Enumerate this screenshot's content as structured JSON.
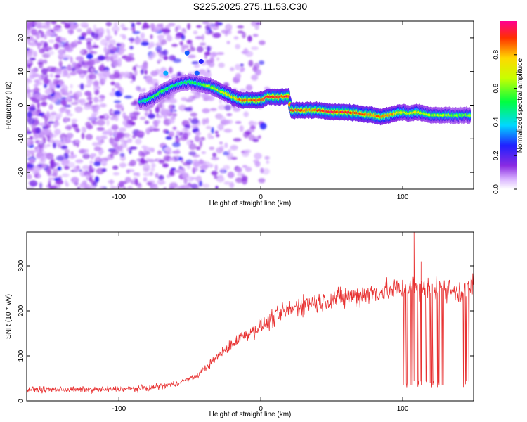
{
  "title": "S225.2025.275.11.53.C30",
  "chart_data": [
    {
      "type": "heatmap",
      "xlabel": "Height of straight line (km)",
      "ylabel": "Frequency (Hz)",
      "xlim": [
        -165,
        150
      ],
      "ylim": [
        -25,
        25
      ],
      "xticks": [
        -100,
        0,
        100
      ],
      "yticks": [
        -20,
        -10,
        0,
        10,
        20
      ],
      "colorbar": {
        "label": "Normalized spectral amplitude",
        "range": [
          0,
          1
        ],
        "ticks": [
          "0.0",
          "0.2",
          "0.4",
          "0.6",
          "0.8"
        ]
      },
      "ridge": [
        {
          "x": -85,
          "y": 1,
          "w": 0.45
        },
        {
          "x": -80,
          "y": 1.5,
          "w": 0.5
        },
        {
          "x": -75,
          "y": 2.5,
          "w": 0.55
        },
        {
          "x": -70,
          "y": 4,
          "w": 0.6
        },
        {
          "x": -65,
          "y": 5,
          "w": 0.55
        },
        {
          "x": -60,
          "y": 6,
          "w": 0.5
        },
        {
          "x": -55,
          "y": 6.5,
          "w": 0.5
        },
        {
          "x": -50,
          "y": 7,
          "w": 0.55
        },
        {
          "x": -45,
          "y": 6.5,
          "w": 0.55
        },
        {
          "x": -40,
          "y": 6,
          "w": 0.6
        },
        {
          "x": -35,
          "y": 5.5,
          "w": 0.65
        },
        {
          "x": -30,
          "y": 4.5,
          "w": 0.7
        },
        {
          "x": -25,
          "y": 3.5,
          "w": 0.75
        },
        {
          "x": -20,
          "y": 2.5,
          "w": 0.8
        },
        {
          "x": -15,
          "y": 1.5,
          "w": 0.85
        },
        {
          "x": -10,
          "y": 1.5,
          "w": 0.9
        },
        {
          "x": -5,
          "y": 1.5,
          "w": 0.9
        },
        {
          "x": 0,
          "y": 1.5,
          "w": 0.9
        },
        {
          "x": 5,
          "y": 2.5,
          "w": 0.95
        },
        {
          "x": 10,
          "y": 2.5,
          "w": 0.95
        },
        {
          "x": 15,
          "y": 2.5,
          "w": 0.95
        },
        {
          "x": 20,
          "y": 2.5,
          "w": 0.95
        },
        {
          "x": 21,
          "y": -1.5,
          "w": 0.9
        },
        {
          "x": 30,
          "y": -1.5,
          "w": 0.9
        },
        {
          "x": 40,
          "y": -1.5,
          "w": 0.9
        },
        {
          "x": 50,
          "y": -2,
          "w": 0.95
        },
        {
          "x": 60,
          "y": -2,
          "w": 0.95
        },
        {
          "x": 70,
          "y": -2.5,
          "w": 0.9
        },
        {
          "x": 80,
          "y": -3,
          "w": 0.9
        },
        {
          "x": 85,
          "y": -3.5,
          "w": 0.85
        },
        {
          "x": 90,
          "y": -3,
          "w": 0.85
        },
        {
          "x": 95,
          "y": -2.5,
          "w": 0.8
        },
        {
          "x": 100,
          "y": -2,
          "w": 0.7
        },
        {
          "x": 105,
          "y": -2.5,
          "w": 0.7
        },
        {
          "x": 110,
          "y": -2,
          "w": 0.75
        },
        {
          "x": 115,
          "y": -2.5,
          "w": 0.7
        },
        {
          "x": 120,
          "y": -3,
          "w": 0.65
        },
        {
          "x": 130,
          "y": -3,
          "w": 0.65
        },
        {
          "x": 140,
          "y": -3,
          "w": 0.6
        },
        {
          "x": 148,
          "y": -3,
          "w": 0.6
        }
      ],
      "noise_region": {
        "xmin": -165,
        "xmax": -35,
        "ymin": -25,
        "ymax": 25
      }
    },
    {
      "type": "line",
      "xlabel": "Height of straight line (km)",
      "ylabel": "SNR (10 * v/v)",
      "xlim": [
        -165,
        150
      ],
      "ylim": [
        0,
        375
      ],
      "xticks": [
        -100,
        0,
        100
      ],
      "yticks": [
        0,
        100,
        200,
        300
      ],
      "color": "#e83232",
      "trend": {
        "x": [
          -165,
          -140,
          -110,
          -80,
          -60,
          -45,
          -30,
          -15,
          0,
          15,
          30,
          50,
          70,
          90,
          110,
          125,
          140,
          150
        ],
        "y": [
          25,
          25,
          25,
          28,
          38,
          55,
          100,
          140,
          165,
          195,
          215,
          225,
          235,
          245,
          250,
          250,
          240,
          255
        ]
      },
      "dropout_ranges": [
        [
          100,
          130
        ],
        [
          142,
          148
        ]
      ],
      "dropout_floor": 30,
      "spikes": [
        {
          "x": 108,
          "y": 375
        },
        {
          "x": 113,
          "y": 310
        },
        {
          "x": 120,
          "y": 305
        }
      ]
    }
  ]
}
